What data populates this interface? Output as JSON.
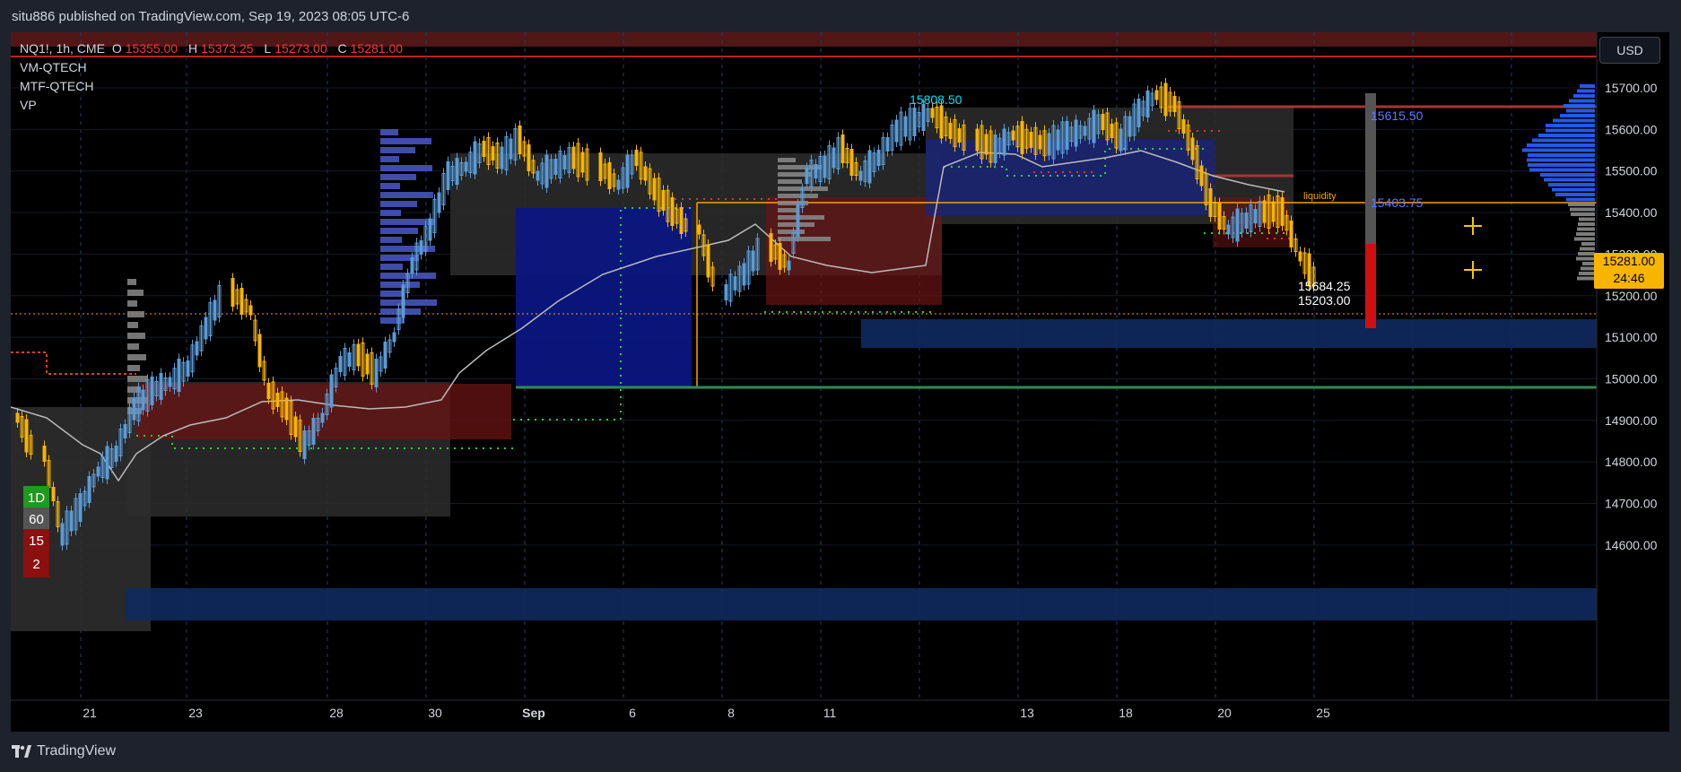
{
  "header": {
    "publisher_line": "situ886 published on TradingView.com, Sep 19, 2023 08:05 UTC-6"
  },
  "legend": {
    "symbol": "NQ1!, 1h, CME",
    "open_label": "O",
    "open": "15355.00",
    "high_label": "H",
    "high": "15373.25",
    "low_label": "L",
    "low": "15273.00",
    "close_label": "C",
    "close": "15281.00",
    "indicators": [
      "VM-QTECH",
      "MTF-QTECH",
      "VP"
    ]
  },
  "currency_button": "USD",
  "price_axis": {
    "ticks": [
      "15700.00",
      "15600.00",
      "15500.00",
      "15400.00",
      "15300.00",
      "15200.00",
      "15100.00",
      "15000.00",
      "14900.00",
      "14800.00",
      "14700.00",
      "14600.00"
    ],
    "current_price": "15281.00",
    "countdown": "24:46"
  },
  "time_axis": {
    "ticks": [
      "21",
      "23",
      "28",
      "30",
      "Sep",
      "6",
      "8",
      "11",
      "13",
      "18",
      "20",
      "25"
    ]
  },
  "annotations": {
    "high_label": "15808.50",
    "target_upper": "15615.50",
    "target_lower": "15403.75",
    "liquidity": "liquidity",
    "level_a": "15684.25",
    "level_b": "15203.00"
  },
  "timeframes": [
    {
      "label": "1D",
      "color": "#1e9a1e"
    },
    {
      "label": "60",
      "color": "#555555"
    },
    {
      "label": "15",
      "color": "#8b1010"
    },
    {
      "label": "2",
      "color": "#8b1010"
    }
  ],
  "footer": {
    "brand": "TradingView"
  },
  "colors": {
    "up_candle": "#5b9bd5",
    "down_candle": "#f7b500",
    "accent_red": "#f23645",
    "volume_profile": "#2962ff"
  }
}
